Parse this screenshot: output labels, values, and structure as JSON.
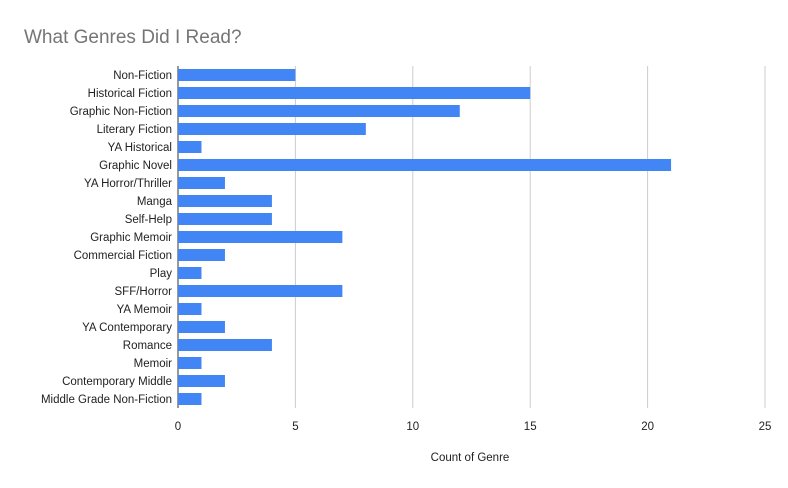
{
  "chart_data": {
    "type": "bar",
    "orientation": "horizontal",
    "title": "What Genres Did I Read?",
    "xlabel": "Count of Genre",
    "ylabel": "",
    "xlim": [
      0,
      25
    ],
    "xticks": [
      0,
      5,
      10,
      15,
      20,
      25
    ],
    "grid": true,
    "legend": "none",
    "bar_color": "#4285f4",
    "categories": [
      "Non-Fiction",
      "Historical Fiction",
      "Graphic Non-Fiction",
      "Literary Fiction",
      "YA Historical",
      "Graphic Novel",
      "YA Horror/Thriller",
      "Manga",
      "Self-Help",
      "Graphic Memoir",
      "Commercial Fiction",
      "Play",
      "SFF/Horror",
      "YA Memoir",
      "YA Contemporary",
      "Romance",
      "Memoir",
      "Contemporary Middle",
      "Middle Grade Non-Fiction"
    ],
    "values": [
      5,
      15,
      12,
      8,
      1,
      21,
      2,
      4,
      4,
      7,
      2,
      1,
      7,
      1,
      2,
      4,
      1,
      2,
      1
    ]
  }
}
